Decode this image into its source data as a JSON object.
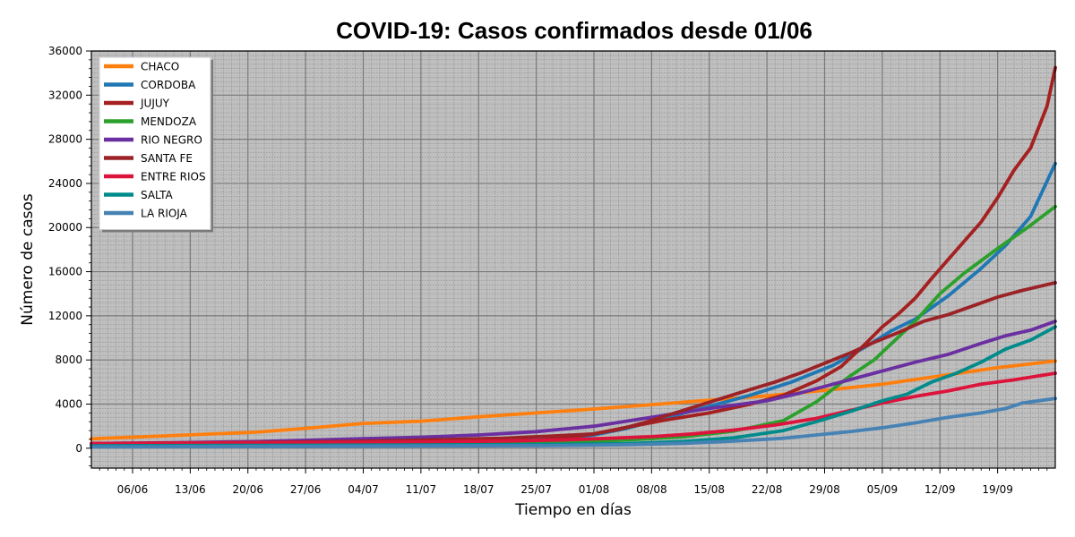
{
  "chart_data": {
    "type": "line",
    "title": "COVID-19: Casos confirmados desde 01/06",
    "xlabel": "Tiempo en días",
    "ylabel": "Número de casos",
    "xlim": [
      0,
      117
    ],
    "ylim": [
      -1800,
      36000
    ],
    "yticks": [
      0,
      4000,
      8000,
      12000,
      16000,
      20000,
      24000,
      28000,
      32000,
      36000
    ],
    "xticks": [
      {
        "x": 5,
        "label": "06/06"
      },
      {
        "x": 12,
        "label": "13/06"
      },
      {
        "x": 19,
        "label": "20/06"
      },
      {
        "x": 26,
        "label": "27/06"
      },
      {
        "x": 33,
        "label": "04/07"
      },
      {
        "x": 40,
        "label": "11/07"
      },
      {
        "x": 47,
        "label": "18/07"
      },
      {
        "x": 54,
        "label": "25/07"
      },
      {
        "x": 61,
        "label": "01/08"
      },
      {
        "x": 68,
        "label": "08/08"
      },
      {
        "x": 75,
        "label": "15/08"
      },
      {
        "x": 82,
        "label": "22/08"
      },
      {
        "x": 89,
        "label": "29/08"
      },
      {
        "x": 96,
        "label": "05/09"
      },
      {
        "x": 103,
        "label": "12/09"
      },
      {
        "x": 110,
        "label": "19/09"
      }
    ],
    "grid": true,
    "legend_position": "top-left",
    "plot_background": "#bfbfbf",
    "series": [
      {
        "name": "CHACO",
        "color": "#ff7f0e",
        "points": [
          [
            0,
            850
          ],
          [
            10,
            1150
          ],
          [
            20,
            1450
          ],
          [
            26,
            1800
          ],
          [
            30,
            2050
          ],
          [
            33,
            2250
          ],
          [
            40,
            2450
          ],
          [
            47,
            2850
          ],
          [
            54,
            3200
          ],
          [
            61,
            3550
          ],
          [
            68,
            3950
          ],
          [
            75,
            4350
          ],
          [
            82,
            4750
          ],
          [
            89,
            5250
          ],
          [
            96,
            5800
          ],
          [
            103,
            6550
          ],
          [
            110,
            7300
          ],
          [
            117,
            7900
          ]
        ]
      },
      {
        "name": "CORDOBA",
        "color": "#1f77b4",
        "points": [
          [
            0,
            420
          ],
          [
            20,
            480
          ],
          [
            40,
            560
          ],
          [
            50,
            650
          ],
          [
            57,
            850
          ],
          [
            61,
            1200
          ],
          [
            65,
            1800
          ],
          [
            70,
            2800
          ],
          [
            75,
            3800
          ],
          [
            80,
            4800
          ],
          [
            85,
            6000
          ],
          [
            90,
            7500
          ],
          [
            94,
            9200
          ],
          [
            97,
            10600
          ],
          [
            100,
            11700
          ],
          [
            104,
            13800
          ],
          [
            108,
            16300
          ],
          [
            111,
            18400
          ],
          [
            114,
            21000
          ],
          [
            117,
            25800
          ]
        ]
      },
      {
        "name": "JUJUY",
        "color": "#a52020",
        "points": [
          [
            0,
            420
          ],
          [
            20,
            470
          ],
          [
            40,
            500
          ],
          [
            50,
            560
          ],
          [
            54,
            680
          ],
          [
            57,
            900
          ],
          [
            61,
            1300
          ],
          [
            65,
            1900
          ],
          [
            70,
            2600
          ],
          [
            75,
            3200
          ],
          [
            80,
            4000
          ],
          [
            84,
            4800
          ],
          [
            88,
            6100
          ],
          [
            91,
            7400
          ],
          [
            94,
            9500
          ],
          [
            96,
            11000
          ],
          [
            98,
            12200
          ],
          [
            100,
            13600
          ],
          [
            102,
            15400
          ],
          [
            104,
            17100
          ],
          [
            106,
            18800
          ],
          [
            108,
            20500
          ],
          [
            110,
            22700
          ],
          [
            112,
            25200
          ],
          [
            114,
            27200
          ],
          [
            116,
            31000
          ],
          [
            117,
            34500
          ]
        ]
      },
      {
        "name": "MENDOZA",
        "color": "#2ca02c",
        "points": [
          [
            0,
            320
          ],
          [
            20,
            370
          ],
          [
            40,
            420
          ],
          [
            55,
            500
          ],
          [
            65,
            750
          ],
          [
            72,
            1050
          ],
          [
            78,
            1550
          ],
          [
            84,
            2500
          ],
          [
            88,
            4200
          ],
          [
            92,
            6500
          ],
          [
            95,
            8000
          ],
          [
            98,
            10100
          ],
          [
            100,
            11500
          ],
          [
            103,
            14000
          ],
          [
            106,
            15900
          ],
          [
            110,
            18100
          ],
          [
            114,
            20200
          ],
          [
            117,
            21900
          ]
        ]
      },
      {
        "name": "RIO NEGRO",
        "color": "#6a2fa0",
        "points": [
          [
            0,
            420
          ],
          [
            10,
            500
          ],
          [
            20,
            600
          ],
          [
            30,
            800
          ],
          [
            40,
            1000
          ],
          [
            47,
            1200
          ],
          [
            54,
            1500
          ],
          [
            61,
            2000
          ],
          [
            68,
            2800
          ],
          [
            75,
            3600
          ],
          [
            82,
            4300
          ],
          [
            86,
            5000
          ],
          [
            90,
            5800
          ],
          [
            95,
            6800
          ],
          [
            100,
            7800
          ],
          [
            104,
            8500
          ],
          [
            108,
            9500
          ],
          [
            111,
            10200
          ],
          [
            114,
            10700
          ],
          [
            117,
            11500
          ]
        ]
      },
      {
        "name": "SANTA FE",
        "color": "#9b2226",
        "points": [
          [
            0,
            420
          ],
          [
            20,
            520
          ],
          [
            30,
            600
          ],
          [
            40,
            750
          ],
          [
            50,
            900
          ],
          [
            56,
            1100
          ],
          [
            61,
            1300
          ],
          [
            64,
            1700
          ],
          [
            67,
            2300
          ],
          [
            70,
            3000
          ],
          [
            73,
            3700
          ],
          [
            76,
            4400
          ],
          [
            79,
            5100
          ],
          [
            83,
            6000
          ],
          [
            86,
            6800
          ],
          [
            89,
            7700
          ],
          [
            92,
            8600
          ],
          [
            95,
            9600
          ],
          [
            98,
            10500
          ],
          [
            101,
            11500
          ],
          [
            104,
            12100
          ],
          [
            107,
            12900
          ],
          [
            110,
            13700
          ],
          [
            113,
            14300
          ],
          [
            117,
            15000
          ]
        ]
      },
      {
        "name": "ENTRE RIOS",
        "color": "#dc143c",
        "points": [
          [
            0,
            420
          ],
          [
            20,
            500
          ],
          [
            40,
            580
          ],
          [
            50,
            650
          ],
          [
            57,
            750
          ],
          [
            63,
            900
          ],
          [
            68,
            1050
          ],
          [
            73,
            1300
          ],
          [
            78,
            1650
          ],
          [
            83,
            2100
          ],
          [
            88,
            2700
          ],
          [
            92,
            3400
          ],
          [
            96,
            4100
          ],
          [
            100,
            4700
          ],
          [
            104,
            5200
          ],
          [
            108,
            5800
          ],
          [
            112,
            6200
          ],
          [
            117,
            6800
          ]
        ]
      },
      {
        "name": "SALTA",
        "color": "#008b8b",
        "points": [
          [
            0,
            220
          ],
          [
            20,
            260
          ],
          [
            40,
            290
          ],
          [
            55,
            330
          ],
          [
            65,
            420
          ],
          [
            72,
            620
          ],
          [
            78,
            950
          ],
          [
            84,
            1600
          ],
          [
            88,
            2400
          ],
          [
            92,
            3300
          ],
          [
            96,
            4300
          ],
          [
            99,
            4900
          ],
          [
            102,
            6000
          ],
          [
            105,
            6800
          ],
          [
            108,
            7800
          ],
          [
            111,
            9000
          ],
          [
            114,
            9800
          ],
          [
            117,
            11000
          ]
        ]
      },
      {
        "name": "LA RIOJA",
        "color": "#4682b4",
        "points": [
          [
            0,
            120
          ],
          [
            20,
            160
          ],
          [
            40,
            200
          ],
          [
            55,
            240
          ],
          [
            65,
            320
          ],
          [
            72,
            450
          ],
          [
            78,
            650
          ],
          [
            84,
            900
          ],
          [
            88,
            1200
          ],
          [
            92,
            1500
          ],
          [
            96,
            1850
          ],
          [
            100,
            2300
          ],
          [
            104,
            2800
          ],
          [
            108,
            3200
          ],
          [
            111,
            3600
          ],
          [
            113,
            4100
          ],
          [
            117,
            4500
          ]
        ]
      }
    ]
  }
}
